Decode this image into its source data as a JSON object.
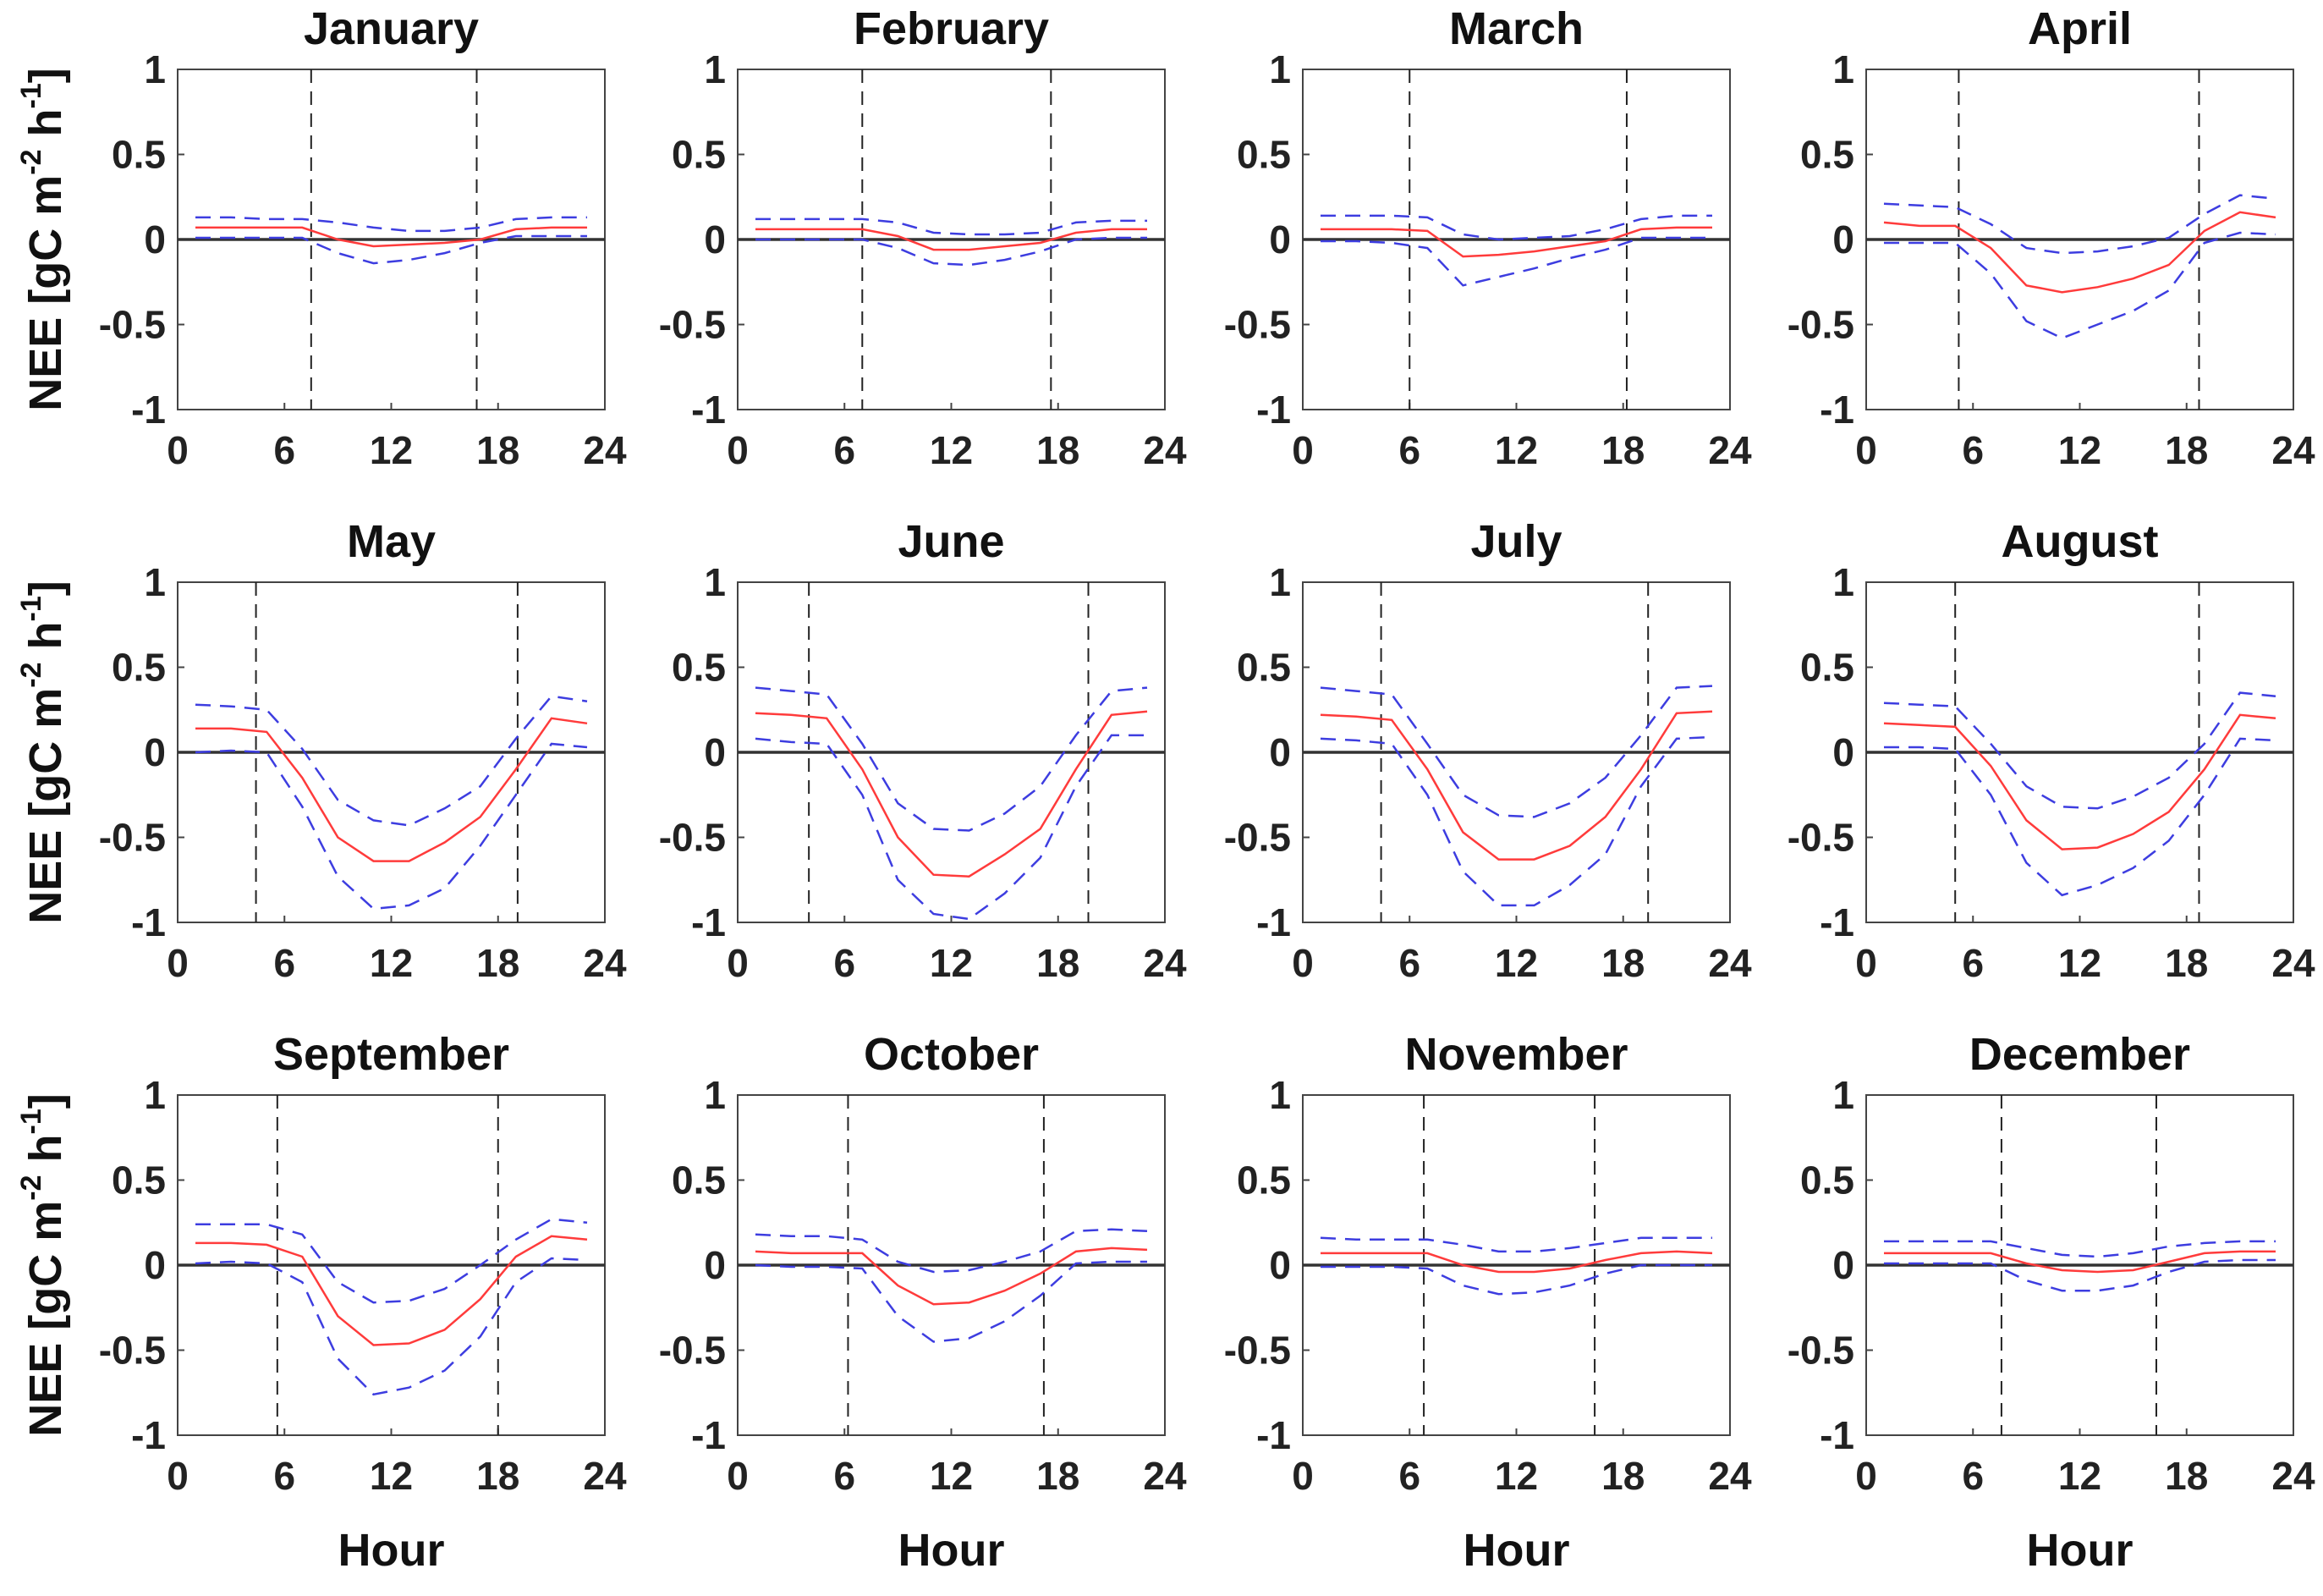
{
  "colors": {
    "mean_line": "#ff3b3b",
    "bound_line": "#3d3de0",
    "zero_line": "#333333",
    "sun_line": "#222222",
    "frame": "#444444"
  },
  "chart_data": {
    "type": "line",
    "layout": "3x4 small multiples",
    "xlabel": "Hour",
    "ylabel": {
      "prefix": "NEE [gC m",
      "sup1": "-2",
      "mid": " h",
      "sup2": "-1",
      "suffix": "]"
    },
    "xlim": [
      0,
      24
    ],
    "ylim": [
      -1,
      1
    ],
    "xticks": [
      0,
      6,
      12,
      18,
      24
    ],
    "yticks": [
      1,
      0.5,
      0,
      -0.5,
      -1
    ],
    "x": [
      1,
      3,
      5,
      7,
      9,
      11,
      13,
      15,
      17,
      19,
      21,
      23
    ],
    "series_names": [
      "mean",
      "upper",
      "lower"
    ],
    "panels": [
      {
        "title": "January",
        "sunrise": 7.5,
        "sunset": 16.8,
        "mean": [
          0.07,
          0.07,
          0.07,
          0.07,
          0.0,
          -0.04,
          -0.03,
          -0.02,
          0.0,
          0.06,
          0.07,
          0.07
        ],
        "upper": [
          0.13,
          0.13,
          0.12,
          0.12,
          0.1,
          0.07,
          0.05,
          0.05,
          0.07,
          0.12,
          0.13,
          0.13
        ],
        "lower": [
          0.01,
          0.01,
          0.01,
          0.01,
          -0.08,
          -0.14,
          -0.12,
          -0.08,
          -0.02,
          0.02,
          0.02,
          0.02
        ]
      },
      {
        "title": "February",
        "sunrise": 7.0,
        "sunset": 17.6,
        "mean": [
          0.06,
          0.06,
          0.06,
          0.06,
          0.02,
          -0.06,
          -0.06,
          -0.04,
          -0.02,
          0.04,
          0.06,
          0.06
        ],
        "upper": [
          0.12,
          0.12,
          0.12,
          0.12,
          0.1,
          0.04,
          0.03,
          0.03,
          0.04,
          0.1,
          0.11,
          0.11
        ],
        "lower": [
          0.0,
          0.0,
          0.0,
          0.0,
          -0.05,
          -0.14,
          -0.15,
          -0.12,
          -0.07,
          0.0,
          0.01,
          0.01
        ]
      },
      {
        "title": "March",
        "sunrise": 6.0,
        "sunset": 18.2,
        "mean": [
          0.06,
          0.06,
          0.06,
          0.05,
          -0.1,
          -0.09,
          -0.07,
          -0.04,
          -0.01,
          0.06,
          0.07,
          0.07
        ],
        "upper": [
          0.14,
          0.14,
          0.14,
          0.13,
          0.03,
          0.0,
          0.01,
          0.02,
          0.06,
          0.12,
          0.14,
          0.14
        ],
        "lower": [
          -0.01,
          -0.01,
          -0.02,
          -0.05,
          -0.27,
          -0.22,
          -0.17,
          -0.11,
          -0.06,
          0.01,
          0.01,
          0.01
        ]
      },
      {
        "title": "April",
        "sunrise": 5.2,
        "sunset": 18.7,
        "mean": [
          0.1,
          0.08,
          0.08,
          -0.05,
          -0.27,
          -0.31,
          -0.28,
          -0.23,
          -0.15,
          0.05,
          0.16,
          0.13
        ],
        "upper": [
          0.21,
          0.2,
          0.19,
          0.09,
          -0.05,
          -0.08,
          -0.07,
          -0.04,
          0.01,
          0.15,
          0.26,
          0.24
        ],
        "lower": [
          -0.02,
          -0.02,
          -0.02,
          -0.2,
          -0.48,
          -0.58,
          -0.5,
          -0.42,
          -0.3,
          -0.02,
          0.04,
          0.03
        ]
      },
      {
        "title": "May",
        "sunrise": 4.4,
        "sunset": 19.1,
        "mean": [
          0.14,
          0.14,
          0.12,
          -0.15,
          -0.5,
          -0.64,
          -0.64,
          -0.53,
          -0.38,
          -0.1,
          0.2,
          0.17
        ],
        "upper": [
          0.28,
          0.27,
          0.25,
          0.02,
          -0.28,
          -0.4,
          -0.43,
          -0.33,
          -0.2,
          0.08,
          0.33,
          0.3
        ],
        "lower": [
          0.0,
          0.01,
          0.0,
          -0.32,
          -0.73,
          -0.92,
          -0.9,
          -0.8,
          -0.55,
          -0.25,
          0.05,
          0.03
        ]
      },
      {
        "title": "June",
        "sunrise": 4.0,
        "sunset": 19.7,
        "mean": [
          0.23,
          0.22,
          0.2,
          -0.1,
          -0.5,
          -0.72,
          -0.73,
          -0.6,
          -0.45,
          -0.1,
          0.22,
          0.24
        ],
        "upper": [
          0.38,
          0.36,
          0.34,
          0.05,
          -0.3,
          -0.45,
          -0.46,
          -0.36,
          -0.2,
          0.1,
          0.36,
          0.38
        ],
        "lower": [
          0.08,
          0.06,
          0.05,
          -0.25,
          -0.75,
          -0.95,
          -0.98,
          -0.83,
          -0.62,
          -0.2,
          0.1,
          0.1
        ]
      },
      {
        "title": "July",
        "sunrise": 4.4,
        "sunset": 19.4,
        "mean": [
          0.22,
          0.21,
          0.19,
          -0.1,
          -0.47,
          -0.63,
          -0.63,
          -0.55,
          -0.38,
          -0.1,
          0.23,
          0.24
        ],
        "upper": [
          0.38,
          0.36,
          0.34,
          0.05,
          -0.25,
          -0.37,
          -0.38,
          -0.3,
          -0.15,
          0.1,
          0.38,
          0.39
        ],
        "lower": [
          0.08,
          0.07,
          0.05,
          -0.25,
          -0.7,
          -0.9,
          -0.9,
          -0.78,
          -0.6,
          -0.2,
          0.08,
          0.09
        ]
      },
      {
        "title": "August",
        "sunrise": 5.0,
        "sunset": 18.7,
        "mean": [
          0.17,
          0.16,
          0.15,
          -0.08,
          -0.4,
          -0.57,
          -0.56,
          -0.48,
          -0.35,
          -0.1,
          0.22,
          0.2
        ],
        "upper": [
          0.29,
          0.28,
          0.27,
          0.05,
          -0.2,
          -0.32,
          -0.33,
          -0.26,
          -0.15,
          0.05,
          0.35,
          0.33
        ],
        "lower": [
          0.03,
          0.03,
          0.02,
          -0.25,
          -0.65,
          -0.84,
          -0.78,
          -0.68,
          -0.52,
          -0.25,
          0.08,
          0.07
        ]
      },
      {
        "title": "September",
        "sunrise": 5.6,
        "sunset": 18.0,
        "mean": [
          0.13,
          0.13,
          0.12,
          0.05,
          -0.3,
          -0.47,
          -0.46,
          -0.38,
          -0.2,
          0.05,
          0.17,
          0.15
        ],
        "upper": [
          0.24,
          0.24,
          0.24,
          0.18,
          -0.1,
          -0.22,
          -0.21,
          -0.14,
          0.0,
          0.15,
          0.27,
          0.25
        ],
        "lower": [
          0.01,
          0.02,
          0.01,
          -0.1,
          -0.55,
          -0.76,
          -0.72,
          -0.62,
          -0.42,
          -0.1,
          0.04,
          0.03
        ]
      },
      {
        "title": "October",
        "sunrise": 6.2,
        "sunset": 17.2,
        "mean": [
          0.08,
          0.07,
          0.07,
          0.07,
          -0.12,
          -0.23,
          -0.22,
          -0.15,
          -0.05,
          0.08,
          0.1,
          0.09
        ],
        "upper": [
          0.18,
          0.17,
          0.17,
          0.15,
          0.02,
          -0.04,
          -0.03,
          0.02,
          0.08,
          0.2,
          0.21,
          0.2
        ],
        "lower": [
          0.0,
          -0.01,
          -0.01,
          -0.02,
          -0.3,
          -0.45,
          -0.43,
          -0.33,
          -0.18,
          0.01,
          0.02,
          0.02
        ]
      },
      {
        "title": "November",
        "sunrise": 6.8,
        "sunset": 16.4,
        "mean": [
          0.07,
          0.07,
          0.07,
          0.07,
          0.0,
          -0.04,
          -0.04,
          -0.02,
          0.03,
          0.07,
          0.08,
          0.07
        ],
        "upper": [
          0.16,
          0.15,
          0.15,
          0.15,
          0.12,
          0.08,
          0.08,
          0.1,
          0.13,
          0.16,
          0.16,
          0.16
        ],
        "lower": [
          -0.01,
          -0.01,
          -0.01,
          -0.02,
          -0.12,
          -0.17,
          -0.16,
          -0.12,
          -0.05,
          0.0,
          0.0,
          0.0
        ]
      },
      {
        "title": "December",
        "sunrise": 7.6,
        "sunset": 16.3,
        "mean": [
          0.07,
          0.07,
          0.07,
          0.07,
          0.01,
          -0.03,
          -0.04,
          -0.03,
          0.02,
          0.07,
          0.08,
          0.08
        ],
        "upper": [
          0.14,
          0.14,
          0.14,
          0.14,
          0.1,
          0.06,
          0.05,
          0.07,
          0.11,
          0.13,
          0.14,
          0.14
        ],
        "lower": [
          0.01,
          0.01,
          0.01,
          0.01,
          -0.09,
          -0.15,
          -0.15,
          -0.12,
          -0.04,
          0.02,
          0.03,
          0.03
        ]
      }
    ]
  }
}
